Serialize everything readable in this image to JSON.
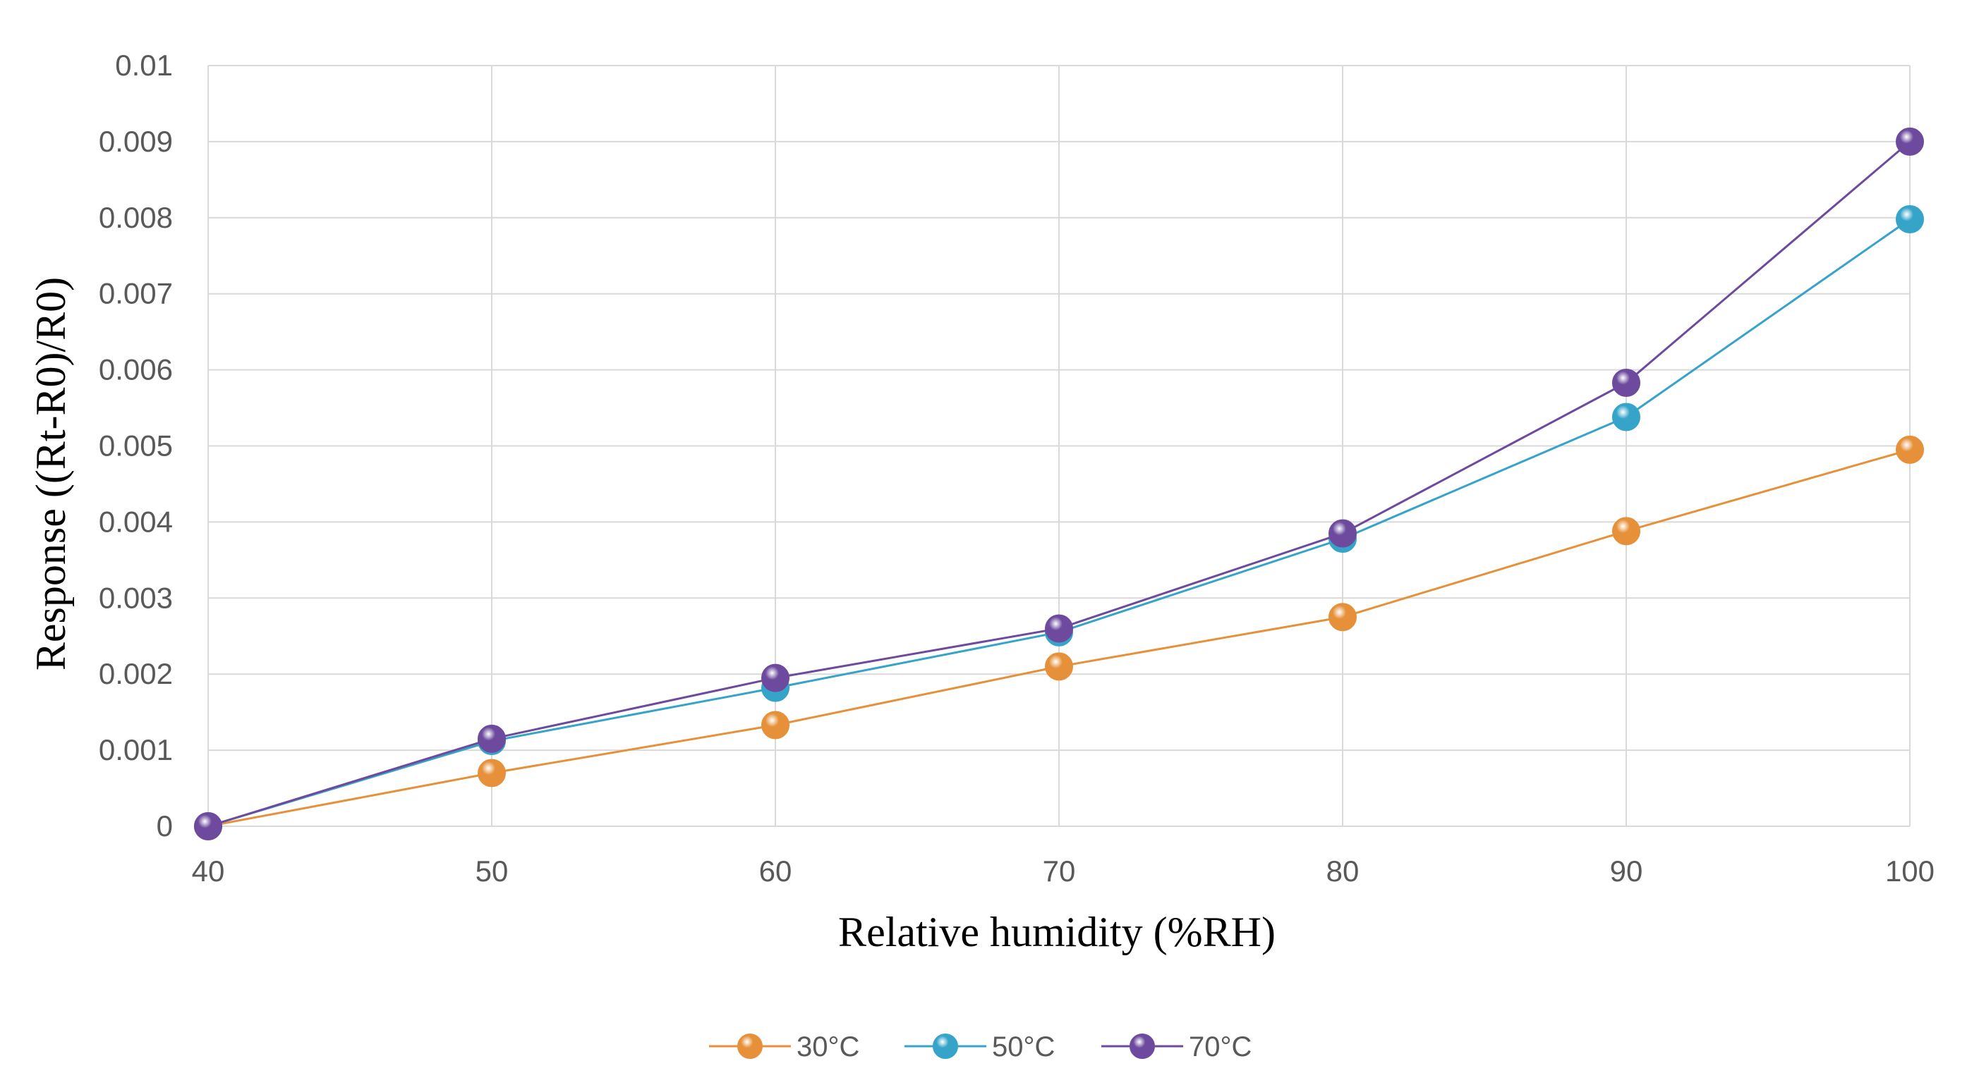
{
  "chart_data": {
    "type": "line",
    "title": "",
    "xlabel": "Relative humidity  (%RH)",
    "ylabel": "Response ((Rt-R0)/R0)",
    "x": [
      40,
      50,
      60,
      70,
      80,
      90,
      100
    ],
    "xlim": [
      40,
      100
    ],
    "ylim": [
      0,
      0.01
    ],
    "xticks": [
      "40",
      "50",
      "60",
      "70",
      "80",
      "90",
      "100"
    ],
    "yticks": [
      "0",
      "0.001",
      "0.002",
      "0.003",
      "0.004",
      "0.005",
      "0.006",
      "0.007",
      "0.008",
      "0.009",
      "0.01"
    ],
    "grid": true,
    "legend_position": "bottom",
    "series": [
      {
        "name": "30°C",
        "color": "#E6913A",
        "values": [
          0,
          0.0007,
          0.00133,
          0.0021,
          0.00275,
          0.00388,
          0.00495
        ]
      },
      {
        "name": "50°C",
        "color": "#35A4C8",
        "values": [
          0,
          0.00112,
          0.00182,
          0.00255,
          0.00378,
          0.00538,
          0.00798
        ]
      },
      {
        "name": "70°C",
        "color": "#6D4A9E",
        "values": [
          0,
          0.00115,
          0.00195,
          0.0026,
          0.00385,
          0.00583,
          0.009
        ]
      }
    ]
  }
}
